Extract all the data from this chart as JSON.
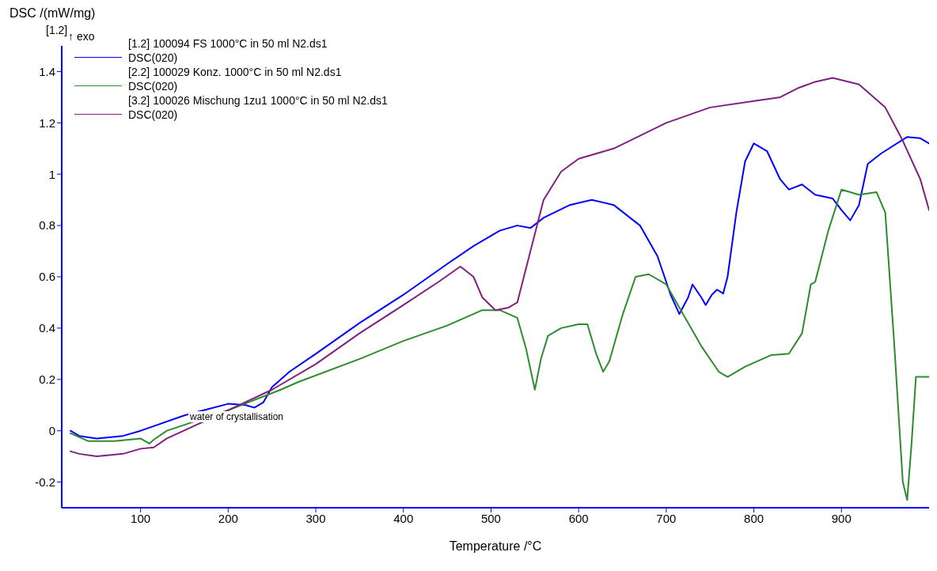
{
  "chart_data": {
    "type": "line",
    "xlabel": "Temperature /°C",
    "ylabel": "DSC /(mW/mg)",
    "xlim": [
      10,
      1000
    ],
    "xticks": [
      100,
      200,
      300,
      400,
      500,
      600,
      700,
      800,
      900
    ],
    "ylim": [
      -0.3,
      1.5
    ],
    "yticks": [
      -0.2,
      0,
      0.2,
      0.4,
      0.6,
      0.8,
      1,
      1.2,
      1.4
    ],
    "grid": false,
    "legend": "top left",
    "marker": "none",
    "line_style": "solid",
    "annotations": [
      "[1.2]",
      "↑ exo",
      "water of crystallisation"
    ],
    "series": [
      {
        "name": "[1.2] 100094 FS 1000°C in 50 ml N2.ds1\nDSC(020)",
        "color": "#0000ff",
        "x": [
          20,
          30,
          50,
          80,
          100,
          150,
          200,
          220,
          230,
          240,
          250,
          270,
          300,
          350,
          400,
          450,
          480,
          510,
          530,
          545,
          560,
          590,
          615,
          640,
          670,
          690,
          705,
          715,
          725,
          730,
          740,
          745,
          752,
          758,
          765,
          770,
          780,
          790,
          800,
          815,
          830,
          840,
          855,
          870,
          890,
          900,
          910,
          920,
          930,
          945,
          975,
          990,
          1000
        ],
        "values": [
          0,
          -0.02,
          -0.03,
          -0.02,
          0,
          0.06,
          0.105,
          0.1,
          0.09,
          0.11,
          0.17,
          0.23,
          0.3,
          0.42,
          0.53,
          0.65,
          0.72,
          0.78,
          0.8,
          0.79,
          0.83,
          0.88,
          0.9,
          0.88,
          0.8,
          0.68,
          0.53,
          0.455,
          0.52,
          0.57,
          0.52,
          0.49,
          0.53,
          0.55,
          0.535,
          0.6,
          0.85,
          1.05,
          1.12,
          1.09,
          0.98,
          0.94,
          0.96,
          0.92,
          0.905,
          0.86,
          0.82,
          0.88,
          1.04,
          1.08,
          1.145,
          1.14,
          1.12
        ]
      },
      {
        "name": "[2.2] 100029 Konz. 1000°C in 50 ml N2.ds1\nDSC(020)",
        "color": "#2e8b2e",
        "x": [
          20,
          40,
          70,
          100,
          110,
          115,
          130,
          200,
          260,
          280,
          350,
          400,
          450,
          490,
          510,
          530,
          540,
          550,
          557,
          565,
          580,
          600,
          610,
          620,
          628,
          635,
          650,
          665,
          680,
          700,
          720,
          740,
          760,
          770,
          790,
          820,
          840,
          855,
          865,
          870,
          885,
          900,
          910,
          920,
          940,
          950,
          960,
          970,
          975,
          980,
          985,
          1000
        ],
        "values": [
          -0.01,
          -0.04,
          -0.04,
          -0.03,
          -0.05,
          -0.035,
          0,
          0.08,
          0.16,
          0.19,
          0.28,
          0.35,
          0.41,
          0.47,
          0.47,
          0.44,
          0.32,
          0.16,
          0.28,
          0.37,
          0.4,
          0.415,
          0.415,
          0.3,
          0.23,
          0.27,
          0.45,
          0.6,
          0.61,
          0.57,
          0.45,
          0.33,
          0.23,
          0.21,
          0.25,
          0.295,
          0.3,
          0.38,
          0.57,
          0.58,
          0.78,
          0.94,
          0.93,
          0.92,
          0.93,
          0.85,
          0.35,
          -0.2,
          -0.27,
          -0.05,
          0.21,
          0.21
        ]
      },
      {
        "name": "[3.2] 100026 Mischung 1zu1 1000°C in 50 ml N2.ds1\nDSC(020)",
        "color": "#80207f",
        "x": [
          20,
          30,
          50,
          80,
          100,
          115,
          130,
          200,
          250,
          300,
          350,
          400,
          440,
          465,
          480,
          490,
          505,
          520,
          530,
          545,
          560,
          580,
          600,
          640,
          700,
          750,
          800,
          830,
          850,
          870,
          890,
          920,
          950,
          970,
          990,
          1000
        ],
        "values": [
          -0.08,
          -0.09,
          -0.1,
          -0.09,
          -0.07,
          -0.065,
          -0.03,
          0.08,
          0.16,
          0.26,
          0.38,
          0.49,
          0.58,
          0.64,
          0.6,
          0.52,
          0.47,
          0.48,
          0.5,
          0.7,
          0.9,
          1.01,
          1.06,
          1.1,
          1.2,
          1.26,
          1.285,
          1.3,
          1.335,
          1.36,
          1.375,
          1.35,
          1.26,
          1.13,
          0.98,
          0.86
        ]
      }
    ]
  }
}
